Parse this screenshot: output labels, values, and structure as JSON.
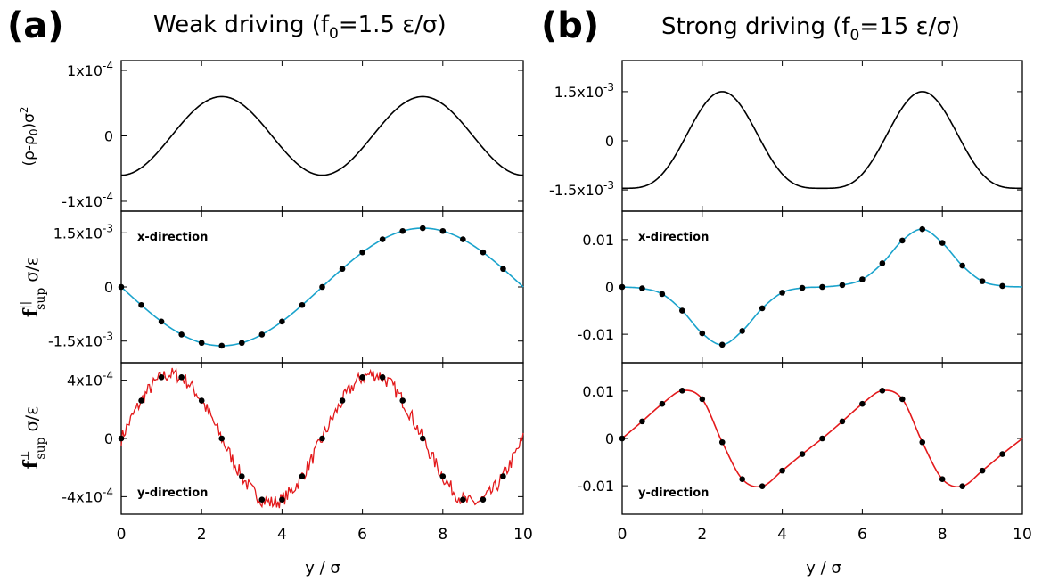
{
  "figure": {
    "panels": [
      {
        "letter": "(a)",
        "title_main": "Weak driving (f",
        "title_sub": "0",
        "title_rest": "=1.5 ε/σ)"
      },
      {
        "letter": "(b)",
        "title_main": "Strong driving (f",
        "title_sub": "0",
        "title_rest": "=15 ε/σ)"
      }
    ],
    "xlabel": "y / σ",
    "ylabels": {
      "density": {
        "main": "(ρ-ρ",
        "sub": "0",
        "rest": ")σ",
        "sup": "2"
      },
      "parallel": {
        "main": "f",
        "sup": "||",
        "sub": "sup",
        "rest": " σ/ε"
      },
      "perp": {
        "main": "f",
        "sup": "⊥",
        "sub": "sup",
        "rest": " σ/ε"
      }
    },
    "annotations": {
      "x": "x-direction",
      "y": "y-direction"
    },
    "colors": {
      "density": "#000000",
      "parallel": "#1aa3cc",
      "perp": "#e31a1c",
      "points": "#000000"
    }
  },
  "chart_data": [
    {
      "type": "line",
      "panel": "a",
      "row": "density",
      "x_range": [
        0,
        10
      ],
      "ylim": [
        -0.000115,
        0.000115
      ],
      "yticks": [
        {
          "v": 0.0001,
          "base": "1x10",
          "exp": "-4"
        },
        {
          "v": 0,
          "base": "0",
          "exp": ""
        },
        {
          "v": -0.0001,
          "base": "-1x10",
          "exp": "-4"
        }
      ],
      "xticks": [
        0,
        2,
        4,
        6,
        8,
        10
      ],
      "curve": {
        "model": "cos",
        "amplitude": 6e-05,
        "period": 5,
        "phase": 2.5
      }
    },
    {
      "type": "line",
      "panel": "a",
      "row": "parallel",
      "annotation": "x-direction",
      "x_range": [
        0,
        10
      ],
      "ylim": [
        -0.0021,
        0.0021
      ],
      "yticks": [
        {
          "v": 0.0015,
          "base": "1.5x10",
          "exp": "-3"
        },
        {
          "v": 0,
          "base": "0",
          "exp": ""
        },
        {
          "v": -0.0015,
          "base": "-1.5x10",
          "exp": "-3"
        }
      ],
      "xticks": [
        0,
        2,
        4,
        6,
        8,
        10
      ],
      "curve": {
        "model": "sin",
        "amplitude": -0.00163,
        "period": 10,
        "phase": 0
      },
      "points": {
        "x": [
          0,
          0.5,
          1,
          1.5,
          2,
          2.5,
          3,
          3.5,
          4,
          4.5,
          5,
          5.5,
          6,
          6.5,
          7,
          7.5,
          8,
          8.5,
          9,
          9.5
        ],
        "y": [
          0,
          -0.0005,
          -0.00096,
          -0.00132,
          -0.00155,
          -0.00163,
          -0.00155,
          -0.00132,
          -0.00096,
          -0.0005,
          0,
          0.0005,
          0.00096,
          0.00132,
          0.00155,
          0.00163,
          0.00155,
          0.00132,
          0.00096,
          0.0005
        ]
      }
    },
    {
      "type": "line",
      "panel": "a",
      "row": "perp",
      "annotation": "y-direction",
      "x_range": [
        0,
        10
      ],
      "ylim": [
        -0.00052,
        0.00052
      ],
      "yticks": [
        {
          "v": 0.0004,
          "base": "4x10",
          "exp": "-4"
        },
        {
          "v": 0,
          "base": "0",
          "exp": ""
        },
        {
          "v": -0.0004,
          "base": "-4x10",
          "exp": "-4"
        }
      ],
      "xticks": [
        0,
        2,
        4,
        6,
        8,
        10
      ],
      "curve": {
        "model": "sin",
        "amplitude": 0.00044,
        "period": 5,
        "phase": 0,
        "noise": 5e-05
      },
      "points": {
        "x": [
          0,
          0.5,
          1,
          1.5,
          2,
          2.5,
          3,
          3.5,
          4,
          4.5,
          5,
          5.5,
          6,
          6.5,
          7,
          7.5,
          8,
          8.5,
          9,
          9.5
        ],
        "y": [
          0,
          0.00026,
          0.00042,
          0.00042,
          0.00026,
          0,
          -0.00026,
          -0.00042,
          -0.00042,
          -0.00026,
          0,
          0.00026,
          0.00042,
          0.00042,
          0.00026,
          0,
          -0.00026,
          -0.00042,
          -0.00042,
          -0.00026
        ]
      }
    },
    {
      "type": "line",
      "panel": "b",
      "row": "density",
      "x_range": [
        0,
        10
      ],
      "ylim": [
        -0.00215,
        0.00245
      ],
      "yticks": [
        {
          "v": 0.0015,
          "base": "1.5x10",
          "exp": "-3"
        },
        {
          "v": 0,
          "base": "0",
          "exp": ""
        },
        {
          "v": -0.0015,
          "base": "-1.5x10",
          "exp": "-3"
        }
      ],
      "xticks": [
        0,
        2,
        4,
        6,
        8,
        10
      ],
      "curve": {
        "model": "peaked",
        "baseline": -0.00145,
        "height": 0.00295,
        "period": 5,
        "phase": 2.5,
        "sharpness": 1.8
      }
    },
    {
      "type": "line",
      "panel": "b",
      "row": "parallel",
      "annotation": "x-direction",
      "x_range": [
        0,
        10
      ],
      "ylim": [
        -0.016,
        0.016
      ],
      "yticks": [
        {
          "v": 0.01,
          "base": "0.01",
          "exp": ""
        },
        {
          "v": 0,
          "base": "0",
          "exp": ""
        },
        {
          "v": -0.01,
          "base": "-0.01",
          "exp": ""
        }
      ],
      "xticks": [
        0,
        2,
        4,
        6,
        8,
        10
      ],
      "curve": {
        "model": "interp"
      },
      "points": {
        "x": [
          0,
          0.5,
          1,
          1.5,
          2,
          2.5,
          3,
          3.5,
          4,
          4.5,
          5,
          5.5,
          6,
          6.5,
          7,
          7.5,
          8,
          8.5,
          9,
          9.5,
          10
        ],
        "y": [
          0,
          -0.0003,
          -0.0015,
          -0.005,
          -0.0098,
          -0.0122,
          -0.0093,
          -0.0045,
          -0.0012,
          -0.0002,
          0,
          0.0004,
          0.0016,
          0.005,
          0.0098,
          0.0122,
          0.0093,
          0.0045,
          0.0012,
          0.0002,
          0
        ]
      }
    },
    {
      "type": "line",
      "panel": "b",
      "row": "perp",
      "annotation": "y-direction",
      "x_range": [
        0,
        10
      ],
      "ylim": [
        -0.016,
        0.016
      ],
      "yticks": [
        {
          "v": 0.01,
          "base": "0.01",
          "exp": ""
        },
        {
          "v": 0,
          "base": "0",
          "exp": ""
        },
        {
          "v": -0.01,
          "base": "-0.01",
          "exp": ""
        }
      ],
      "xticks": [
        0,
        2,
        4,
        6,
        8,
        10
      ],
      "curve": {
        "model": "interp"
      },
      "points": {
        "x": [
          0,
          0.5,
          1,
          1.5,
          2,
          2.5,
          3,
          3.5,
          4,
          4.5,
          5,
          5.5,
          6,
          6.5,
          7,
          7.5,
          8,
          8.5,
          9,
          9.5,
          10
        ],
        "y": [
          0,
          0.0036,
          0.0073,
          0.0101,
          0.0083,
          -0.0008,
          -0.0086,
          -0.0101,
          -0.0068,
          -0.0033,
          0,
          0.0036,
          0.0073,
          0.0101,
          0.0083,
          -0.0008,
          -0.0086,
          -0.0101,
          -0.0068,
          -0.0033,
          0
        ]
      }
    }
  ]
}
